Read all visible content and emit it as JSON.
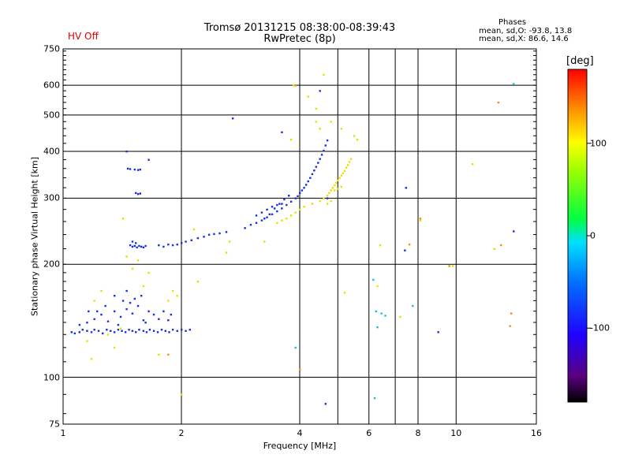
{
  "status": {
    "hv_label": "HV Off",
    "hv_color": "#e00000"
  },
  "header": {
    "title_line1": "Tromsø 20131215 08:38:00-08:39:43",
    "title_line2": "RwPretec (8p)",
    "phase_title": "Phases",
    "phase_o": "mean, sd,O: -93.8, 13.8",
    "phase_x": "mean, sd,X:  86.6, 14.6"
  },
  "chart_data": {
    "type": "scatter",
    "title": "Tromsø 20131215 08:38:00-08:39:43",
    "subtitle": "RwPretec (8p)",
    "xlabel": "Frequency [MHz]",
    "ylabel": "Stationary phase Virtual Height [km]",
    "x_scale": "log2",
    "y_scale": "log",
    "xlim": [
      1,
      16
    ],
    "ylim": [
      75,
      750
    ],
    "x_ticks": [
      {
        "value": 1,
        "label": "1"
      },
      {
        "value": 2,
        "label": "2"
      },
      {
        "value": 4,
        "label": "4"
      },
      {
        "value": 6,
        "label": "6"
      },
      {
        "value": 8,
        "label": "8"
      },
      {
        "value": 10,
        "label": "10"
      },
      {
        "value": 16,
        "label": "16"
      }
    ],
    "x_grid": [
      2,
      4,
      5,
      6,
      7,
      8,
      10
    ],
    "y_ticks": [
      {
        "value": 75,
        "label": "75"
      },
      {
        "value": 100,
        "label": "100"
      },
      {
        "value": 200,
        "label": "200"
      },
      {
        "value": 300,
        "label": "300"
      },
      {
        "value": 400,
        "label": "400"
      },
      {
        "value": 500,
        "label": "500"
      },
      {
        "value": 600,
        "label": "600"
      },
      {
        "value": 750,
        "label": "750"
      }
    ],
    "colorbar": {
      "label": "[deg]",
      "range": [
        -180,
        180
      ],
      "ticks": [
        {
          "value": 100,
          "label": "100"
        },
        {
          "value": 0,
          "label": "0"
        },
        {
          "value": -100,
          "label": "-100"
        }
      ]
    },
    "series": [
      {
        "name": "O-mode (blue traces)",
        "color": "#1530e0",
        "points": [
          [
            1.05,
            132
          ],
          [
            1.07,
            131
          ],
          [
            1.1,
            132
          ],
          [
            1.12,
            134
          ],
          [
            1.15,
            133
          ],
          [
            1.18,
            132
          ],
          [
            1.2,
            134
          ],
          [
            1.23,
            133
          ],
          [
            1.26,
            131
          ],
          [
            1.29,
            134
          ],
          [
            1.32,
            133
          ],
          [
            1.35,
            132
          ],
          [
            1.38,
            134
          ],
          [
            1.41,
            133
          ],
          [
            1.44,
            132
          ],
          [
            1.47,
            134
          ],
          [
            1.5,
            133
          ],
          [
            1.53,
            132
          ],
          [
            1.56,
            134
          ],
          [
            1.6,
            133
          ],
          [
            1.63,
            132
          ],
          [
            1.66,
            134
          ],
          [
            1.7,
            133
          ],
          [
            1.74,
            132
          ],
          [
            1.78,
            134
          ],
          [
            1.82,
            133
          ],
          [
            1.86,
            132
          ],
          [
            1.9,
            134
          ],
          [
            1.95,
            133
          ],
          [
            2.0,
            134
          ],
          [
            2.05,
            133
          ],
          [
            2.1,
            134
          ],
          [
            1.15,
            140
          ],
          [
            1.2,
            143
          ],
          [
            1.25,
            147
          ],
          [
            1.3,
            141
          ],
          [
            1.35,
            150
          ],
          [
            1.4,
            145
          ],
          [
            1.45,
            152
          ],
          [
            1.5,
            148
          ],
          [
            1.55,
            155
          ],
          [
            1.6,
            142
          ],
          [
            1.65,
            150
          ],
          [
            1.7,
            147
          ],
          [
            1.75,
            143
          ],
          [
            1.42,
            160
          ],
          [
            1.48,
            158
          ],
          [
            1.52,
            162
          ],
          [
            1.22,
            150
          ],
          [
            1.28,
            155
          ],
          [
            1.62,
            140
          ],
          [
            1.38,
            138
          ],
          [
            1.1,
            138
          ],
          [
            1.8,
            150
          ],
          [
            1.85,
            142
          ],
          [
            1.88,
            147
          ],
          [
            1.16,
            150
          ],
          [
            1.58,
            165
          ],
          [
            1.45,
            170
          ],
          [
            1.35,
            165
          ],
          [
            1.48,
            225
          ],
          [
            1.5,
            223
          ],
          [
            1.52,
            224
          ],
          [
            1.54,
            222
          ],
          [
            1.56,
            224
          ],
          [
            1.58,
            223
          ],
          [
            1.6,
            222
          ],
          [
            1.62,
            224
          ],
          [
            1.5,
            230
          ],
          [
            1.53,
            228
          ],
          [
            1.46,
            360
          ],
          [
            1.48,
            359
          ],
          [
            1.52,
            358
          ],
          [
            1.55,
            357
          ],
          [
            1.57,
            358
          ],
          [
            1.53,
            310
          ],
          [
            1.55,
            308
          ],
          [
            1.57,
            309
          ],
          [
            1.45,
            400
          ],
          [
            1.65,
            380
          ],
          [
            1.75,
            225
          ],
          [
            1.8,
            223
          ],
          [
            1.85,
            226
          ],
          [
            1.9,
            225
          ],
          [
            1.95,
            226
          ],
          [
            2.0,
            228
          ],
          [
            2.05,
            230
          ],
          [
            2.12,
            232
          ],
          [
            2.2,
            235
          ],
          [
            2.28,
            237
          ],
          [
            2.35,
            240
          ],
          [
            2.42,
            241
          ],
          [
            2.5,
            242
          ],
          [
            2.6,
            244
          ],
          [
            2.9,
            250
          ],
          [
            3.0,
            255
          ],
          [
            3.1,
            258
          ],
          [
            3.2,
            262
          ],
          [
            3.3,
            267
          ],
          [
            3.4,
            272
          ],
          [
            3.5,
            277
          ],
          [
            3.6,
            282
          ],
          [
            3.7,
            288
          ],
          [
            3.8,
            294
          ],
          [
            3.9,
            300
          ],
          [
            3.95,
            304
          ],
          [
            4.0,
            310
          ],
          [
            4.05,
            315
          ],
          [
            4.1,
            320
          ],
          [
            4.15,
            326
          ],
          [
            4.2,
            333
          ],
          [
            4.25,
            340
          ],
          [
            4.3,
            348
          ],
          [
            4.35,
            356
          ],
          [
            4.4,
            364
          ],
          [
            4.45,
            373
          ],
          [
            4.5,
            382
          ],
          [
            4.55,
            392
          ],
          [
            4.6,
            402
          ],
          [
            4.65,
            415
          ],
          [
            4.7,
            428
          ],
          [
            3.1,
            270
          ],
          [
            3.2,
            275
          ],
          [
            3.3,
            280
          ],
          [
            3.4,
            285
          ],
          [
            3.5,
            288
          ],
          [
            3.6,
            290
          ],
          [
            3.25,
            265
          ],
          [
            3.35,
            272
          ],
          [
            3.45,
            282
          ],
          [
            3.55,
            290
          ],
          [
            3.65,
            298
          ],
          [
            3.75,
            305
          ],
          [
            2.7,
            490
          ],
          [
            3.6,
            450
          ],
          [
            4.5,
            580
          ],
          [
            7.45,
            320
          ],
          [
            4.7,
            300
          ],
          [
            7.4,
            218
          ],
          [
            9.0,
            132
          ],
          [
            14.0,
            245
          ],
          [
            4.65,
            85
          ]
        ]
      },
      {
        "name": "X-mode (yellow traces)",
        "color": "#e8e000",
        "points": [
          [
            3.5,
            258
          ],
          [
            3.6,
            262
          ],
          [
            3.7,
            265
          ],
          [
            3.8,
            270
          ],
          [
            3.9,
            275
          ],
          [
            4.0,
            280
          ],
          [
            4.1,
            285
          ],
          [
            4.3,
            290
          ],
          [
            4.5,
            295
          ],
          [
            4.6,
            300
          ],
          [
            4.7,
            305
          ],
          [
            4.75,
            310
          ],
          [
            4.8,
            315
          ],
          [
            4.85,
            320
          ],
          [
            4.9,
            325
          ],
          [
            4.95,
            330
          ],
          [
            5.0,
            335
          ],
          [
            5.05,
            340
          ],
          [
            5.1,
            345
          ],
          [
            5.15,
            350
          ],
          [
            5.2,
            355
          ],
          [
            5.25,
            362
          ],
          [
            5.3,
            368
          ],
          [
            5.35,
            375
          ],
          [
            5.4,
            382
          ],
          [
            4.9,
            315
          ],
          [
            5.0,
            318
          ],
          [
            5.1,
            322
          ],
          [
            4.7,
            290
          ],
          [
            4.8,
            295
          ],
          [
            3.85,
            600
          ],
          [
            4.2,
            560
          ],
          [
            4.4,
            520
          ],
          [
            4.5,
            460
          ],
          [
            4.6,
            640
          ],
          [
            4.8,
            480
          ],
          [
            5.1,
            460
          ],
          [
            5.5,
            440
          ],
          [
            3.8,
            430
          ],
          [
            1.2,
            160
          ],
          [
            1.25,
            170
          ],
          [
            1.15,
            125
          ],
          [
            1.18,
            112
          ],
          [
            1.3,
            130
          ],
          [
            1.35,
            120
          ],
          [
            1.4,
            135
          ],
          [
            1.45,
            210
          ],
          [
            1.5,
            195
          ],
          [
            1.55,
            205
          ],
          [
            1.42,
            265
          ],
          [
            1.9,
            170
          ],
          [
            1.95,
            165
          ],
          [
            1.75,
            115
          ],
          [
            2.0,
            90
          ],
          [
            2.2,
            180
          ],
          [
            1.85,
            160
          ],
          [
            1.6,
            175
          ],
          [
            1.65,
            190
          ],
          [
            2.6,
            215
          ],
          [
            2.65,
            230
          ],
          [
            3.25,
            230
          ],
          [
            4.0,
            105
          ],
          [
            5.2,
            168
          ],
          [
            6.3,
            175
          ],
          [
            6.4,
            225
          ],
          [
            8.1,
            262
          ],
          [
            9.8,
            198
          ],
          [
            12.5,
            220
          ],
          [
            11.0,
            370
          ],
          [
            7.2,
            145
          ],
          [
            5.6,
            430
          ],
          [
            4.4,
            480
          ],
          [
            2.15,
            248
          ]
        ]
      },
      {
        "name": "Scattered orange",
        "color": "#f09010",
        "points": [
          [
            3.9,
            600
          ],
          [
            12.8,
            540
          ],
          [
            13.0,
            225
          ],
          [
            13.8,
            148
          ],
          [
            13.7,
            137
          ],
          [
            7.6,
            226
          ],
          [
            8.1,
            265
          ],
          [
            9.6,
            198
          ],
          [
            4.0,
            105
          ],
          [
            1.85,
            115
          ]
        ]
      },
      {
        "name": "Scattered cyan",
        "color": "#10c0d0",
        "points": [
          [
            6.25,
            150
          ],
          [
            6.3,
            136
          ],
          [
            6.45,
            148
          ],
          [
            6.6,
            146
          ],
          [
            7.75,
            155
          ],
          [
            14.0,
            605
          ],
          [
            6.2,
            88
          ],
          [
            3.9,
            120
          ],
          [
            6.15,
            182
          ]
        ]
      }
    ]
  },
  "axes": {
    "xlabel": "Frequency [MHz]",
    "ylabel": "Stationary phase Virtual Height [km]",
    "cb_label": "[deg]"
  }
}
